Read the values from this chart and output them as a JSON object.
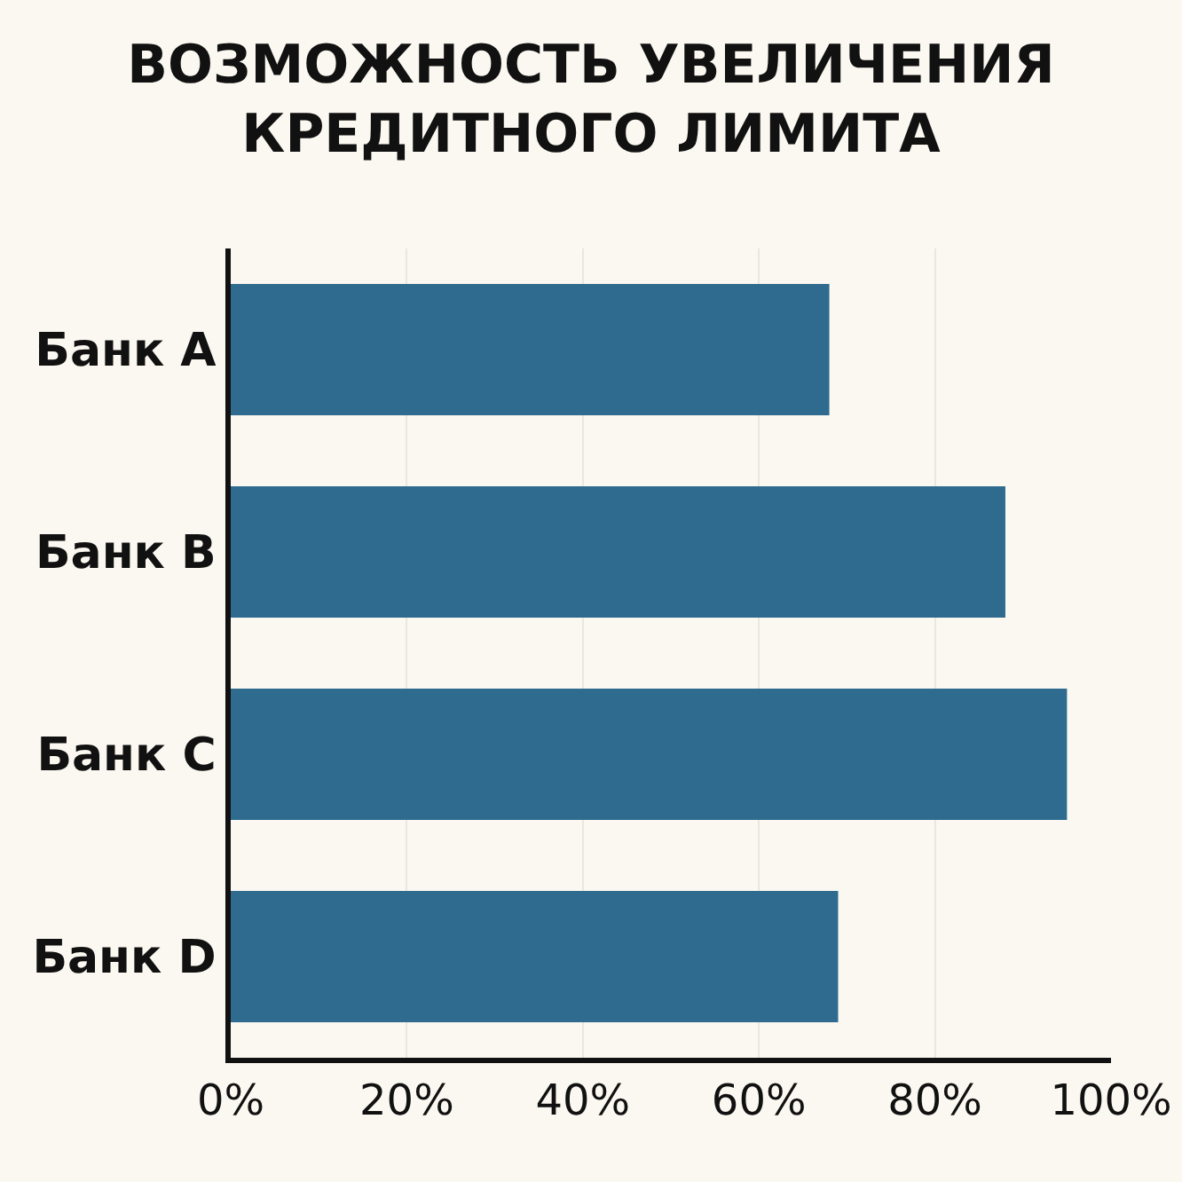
{
  "chart_data": {
    "type": "bar",
    "orientation": "horizontal",
    "title": "ВОЗМОЖНОСТЬ УВЕЛИЧЕНИЯ\nКРЕДИТНОГО ЛИМИТА",
    "categories": [
      "Банк A",
      "Банк B",
      "Банк C",
      "Банк D"
    ],
    "values": [
      68,
      88,
      95,
      69
    ],
    "color": "#2e6b8f",
    "xlim": [
      0,
      100
    ],
    "xticks": [
      {
        "value": 0,
        "label": "0%"
      },
      {
        "value": 20,
        "label": "20%"
      },
      {
        "value": 40,
        "label": "40%"
      },
      {
        "value": 60,
        "label": "60%"
      },
      {
        "value": 80,
        "label": "80%"
      },
      {
        "value": 100,
        "label": "100%"
      }
    ],
    "grid": "x"
  }
}
